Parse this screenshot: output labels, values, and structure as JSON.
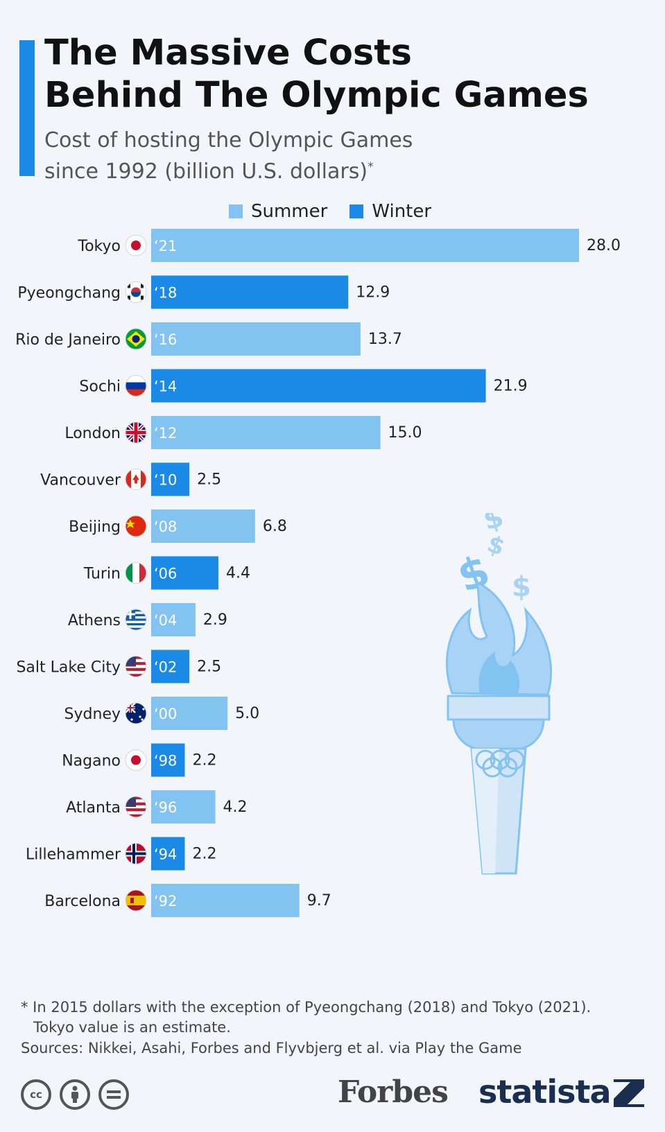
{
  "header": {
    "title_line1": "The Massive Costs",
    "title_line2": "Behind The Olympic Games",
    "subtitle_line1": "Cost of hosting the Olympic Games",
    "subtitle_line2": "since 1992 (billion U.S. dollars)",
    "subtitle_mark": "*"
  },
  "legend": {
    "summer_label": "Summer",
    "winter_label": "Winter"
  },
  "colors": {
    "summer": "#83c3f2",
    "winter": "#1a8ae6",
    "accent": "#1a8ae6"
  },
  "chart_data": {
    "type": "bar",
    "orientation": "horizontal",
    "series": [
      {
        "name": "Summer",
        "color": "#83c3f2"
      },
      {
        "name": "Winter",
        "color": "#1a8ae6"
      }
    ],
    "categories": [
      "Tokyo",
      "Pyeongchang",
      "Rio de Janeiro",
      "Sochi",
      "London",
      "Vancouver",
      "Beijing",
      "Turin",
      "Athens",
      "Salt Lake City",
      "Sydney",
      "Nagano",
      "Atlanta",
      "Lillehammer",
      "Barcelona"
    ],
    "year_labels": [
      "‘21",
      "‘18",
      "‘16",
      "‘14",
      "‘12",
      "‘10",
      "‘08",
      "‘06",
      "‘04",
      "‘02",
      "‘00",
      "‘98",
      "‘96",
      "‘94",
      "‘92"
    ],
    "season": [
      "Summer",
      "Winter",
      "Summer",
      "Winter",
      "Summer",
      "Winter",
      "Summer",
      "Winter",
      "Summer",
      "Winter",
      "Summer",
      "Winter",
      "Summer",
      "Winter",
      "Summer"
    ],
    "values": [
      28.0,
      12.9,
      13.7,
      21.9,
      15.0,
      2.5,
      6.8,
      4.4,
      2.9,
      2.5,
      5.0,
      2.2,
      4.2,
      2.2,
      9.7
    ],
    "value_labels": [
      "28.0",
      "12.9",
      "13.7",
      "21.9",
      "15.0",
      "2.5",
      "6.8",
      "4.4",
      "2.9",
      "2.5",
      "5.0",
      "2.2",
      "4.2",
      "2.2",
      "9.7"
    ],
    "flags": [
      "japan",
      "south-korea",
      "brazil",
      "russia",
      "uk",
      "canada",
      "china",
      "italy",
      "greece",
      "usa",
      "australia",
      "japan",
      "usa",
      "norway",
      "spain"
    ],
    "xlim": [
      0,
      28
    ],
    "grid": false,
    "legend_position": "top"
  },
  "footer": {
    "footnote_line1": "* In 2015 dollars with the exception of Pyeongchang (2018) and Tokyo (2021).",
    "footnote_line2": "Tokyo value is an estimate.",
    "sources": "Sources: Nikkei, Asahi, Forbes and Flyvbjerg et al. via Play the Game",
    "forbes_logo": "Forbes",
    "statista_logo": "statista",
    "license_icons": [
      "cc-icon",
      "attribution-icon",
      "no-derivatives-icon"
    ]
  }
}
